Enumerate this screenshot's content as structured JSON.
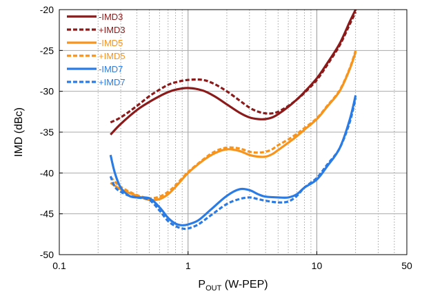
{
  "chart_data": {
    "type": "line",
    "title": "",
    "xlabel_main": "P",
    "xlabel_sub": "OUT",
    "xlabel_suffix": " (W-PEP)",
    "ylabel": "IMD (dBc)",
    "xscale": "log",
    "xlim": [
      0.1,
      50
    ],
    "ylim": [
      -50,
      -20
    ],
    "xticks": [
      0.1,
      1,
      10,
      50
    ],
    "xtick_labels": [
      "0.1",
      "1",
      "10",
      "50"
    ],
    "yticks": [
      -50,
      -45,
      -40,
      -35,
      -30,
      -25,
      -20
    ],
    "ytick_labels": [
      "-50",
      "-45",
      "-40",
      "-35",
      "-30",
      "-25",
      "-20"
    ],
    "grid": true,
    "legend_position": "top-left",
    "series": [
      {
        "name": "-IMD3",
        "color": "#8b1a1a",
        "dash": "solid",
        "x": [
          0.25,
          0.3,
          0.4,
          0.5,
          0.6,
          0.7,
          0.8,
          1.0,
          1.3,
          1.6,
          2.0,
          2.5,
          3.0,
          3.5,
          4.0,
          4.5,
          5.0,
          6.0,
          7.0,
          8.0,
          10.0,
          12.0,
          15.0,
          18.0,
          20.0
        ],
        "y": [
          -35.3,
          -34.0,
          -32.3,
          -31.3,
          -30.6,
          -30.1,
          -29.8,
          -29.6,
          -29.9,
          -30.6,
          -31.6,
          -32.6,
          -33.2,
          -33.4,
          -33.4,
          -33.2,
          -32.8,
          -31.9,
          -31.0,
          -30.1,
          -28.4,
          -26.6,
          -24.2,
          -21.5,
          -20.0
        ]
      },
      {
        "name": "+IMD3",
        "color": "#8b1a1a",
        "dash": "dashed",
        "x": [
          0.25,
          0.3,
          0.4,
          0.5,
          0.6,
          0.7,
          0.8,
          1.0,
          1.3,
          1.6,
          2.0,
          2.5,
          3.0,
          3.5,
          4.0,
          4.5,
          5.0,
          6.0,
          7.0,
          8.0,
          10.0,
          12.0,
          15.0,
          18.0,
          20.0
        ],
        "y": [
          -33.8,
          -33.2,
          -31.8,
          -30.6,
          -29.8,
          -29.2,
          -28.9,
          -28.6,
          -28.6,
          -29.1,
          -30.0,
          -31.1,
          -32.0,
          -32.5,
          -32.7,
          -32.7,
          -32.5,
          -31.8,
          -31.0,
          -30.2,
          -28.6,
          -26.8,
          -24.4,
          -21.8,
          -20.3
        ]
      },
      {
        "name": "-IMD5",
        "color": "#f7941d",
        "dash": "solid",
        "x": [
          0.25,
          0.3,
          0.4,
          0.5,
          0.6,
          0.7,
          0.8,
          1.0,
          1.3,
          1.6,
          2.0,
          2.5,
          3.0,
          3.5,
          4.0,
          4.5,
          5.0,
          6.0,
          7.0,
          8.0,
          10.0,
          12.0,
          15.0,
          18.0,
          20.0
        ],
        "y": [
          -41.2,
          -42.0,
          -42.8,
          -43.3,
          -43.2,
          -42.6,
          -41.7,
          -40.0,
          -38.5,
          -37.6,
          -37.1,
          -37.3,
          -37.8,
          -38.0,
          -38.0,
          -37.7,
          -37.2,
          -36.3,
          -35.5,
          -34.7,
          -33.4,
          -31.9,
          -30.0,
          -27.3,
          -25.2
        ]
      },
      {
        "name": "+IMD5",
        "color": "#f7941d",
        "dash": "dashed",
        "x": [
          0.25,
          0.3,
          0.4,
          0.5,
          0.6,
          0.7,
          0.8,
          1.0,
          1.3,
          1.6,
          2.0,
          2.5,
          3.0,
          3.5,
          4.0,
          4.5,
          5.0,
          6.0,
          7.0,
          8.0,
          10.0,
          12.0,
          15.0,
          18.0,
          20.0
        ],
        "y": [
          -40.5,
          -41.7,
          -42.7,
          -43.1,
          -42.9,
          -42.3,
          -41.5,
          -39.9,
          -38.4,
          -37.4,
          -36.9,
          -37.0,
          -37.4,
          -37.5,
          -37.4,
          -37.1,
          -36.6,
          -35.9,
          -35.2,
          -34.5,
          -33.3,
          -31.8,
          -29.9,
          -27.2,
          -25.0
        ]
      },
      {
        "name": "-IMD7",
        "color": "#2b7be4",
        "dash": "solid",
        "x": [
          0.25,
          0.27,
          0.3,
          0.35,
          0.4,
          0.5,
          0.6,
          0.7,
          0.8,
          0.9,
          1.0,
          1.2,
          1.5,
          2.0,
          2.5,
          3.0,
          3.5,
          4.0,
          5.0,
          6.0,
          7.0,
          8.0,
          10.0,
          12.0,
          15.0,
          18.0,
          20.0
        ],
        "y": [
          -37.8,
          -40.0,
          -41.8,
          -42.8,
          -43.0,
          -43.1,
          -44.2,
          -45.5,
          -46.2,
          -46.4,
          -46.3,
          -45.8,
          -44.5,
          -42.8,
          -42.0,
          -42.1,
          -42.6,
          -42.9,
          -43.0,
          -43.0,
          -42.6,
          -41.8,
          -40.8,
          -39.2,
          -37.0,
          -33.5,
          -30.5
        ]
      },
      {
        "name": "+IMD7",
        "color": "#2b7be4",
        "dash": "dashed",
        "x": [
          0.25,
          0.27,
          0.3,
          0.35,
          0.4,
          0.5,
          0.6,
          0.7,
          0.8,
          0.9,
          1.0,
          1.2,
          1.5,
          2.0,
          2.5,
          3.0,
          3.5,
          4.0,
          5.0,
          6.0,
          7.0,
          8.0,
          10.0,
          12.0,
          15.0,
          18.0,
          20.0
        ],
        "y": [
          -40.4,
          -41.7,
          -42.3,
          -42.8,
          -43.0,
          -43.3,
          -44.6,
          -45.9,
          -46.5,
          -46.8,
          -46.8,
          -46.3,
          -45.2,
          -43.8,
          -43.2,
          -43.0,
          -43.2,
          -43.4,
          -43.6,
          -43.5,
          -42.8,
          -41.8,
          -40.6,
          -39.0,
          -37.0,
          -33.8,
          -30.8
        ]
      }
    ]
  }
}
